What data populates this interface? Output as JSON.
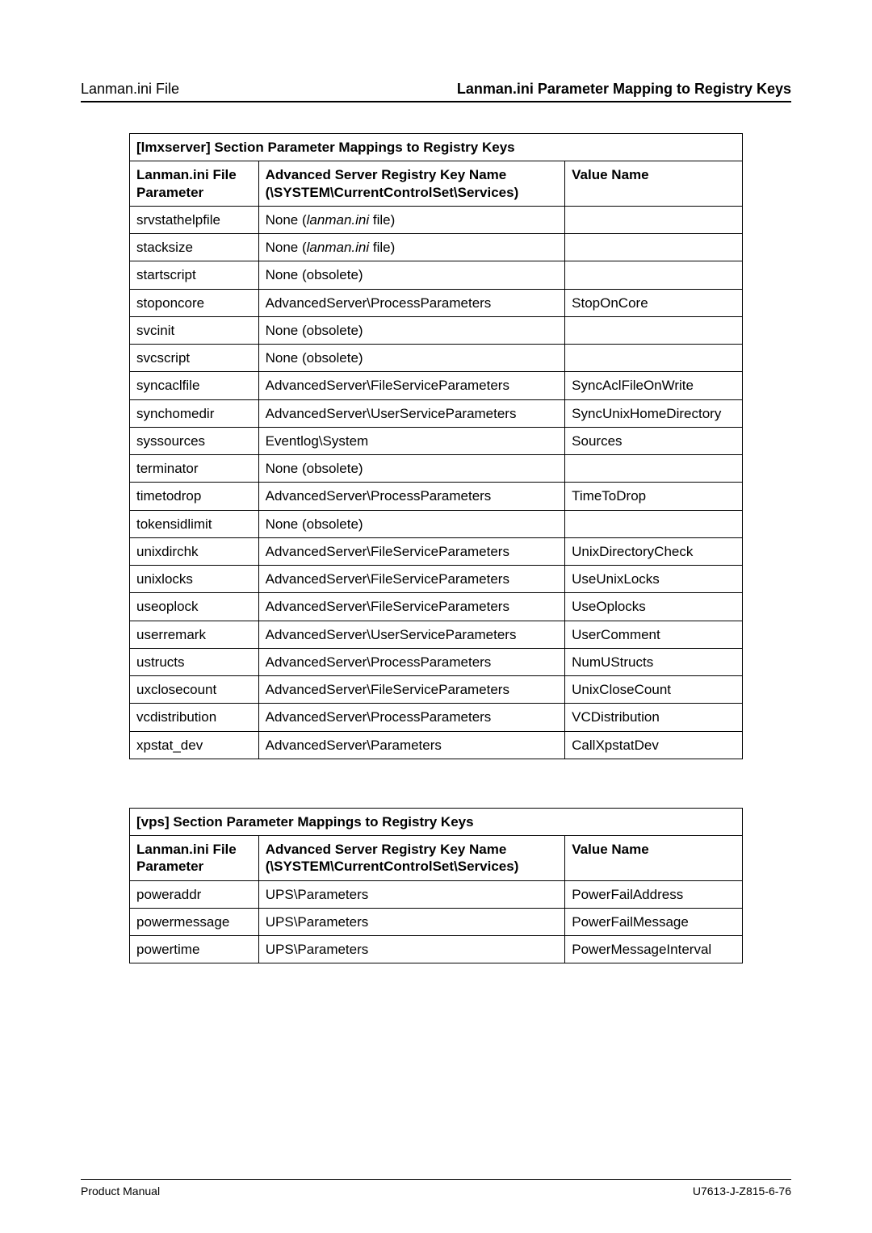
{
  "page": {
    "header_left": "Lanman.ini File",
    "header_right": "Lanman.ini Parameter Mapping to Registry Keys",
    "footer_left": "Product Manual",
    "footer_right": "U7613-J-Z815-6-76"
  },
  "table1": {
    "caption": "[lmxserver] Section Parameter Mappings to Registry Keys",
    "columns": {
      "param": "Lanman.ini File Parameter",
      "key": "Advanced Server Registry Key Name (\\SYSTEM\\CurrentControlSet\\Services)",
      "value": "Value Name"
    },
    "rows": [
      {
        "param": "srvstathelpfile",
        "key_pre": "None (",
        "key_italic": "lanman.ini",
        "key_post": " file)",
        "value": ""
      },
      {
        "param": "stacksize",
        "key_pre": "None (",
        "key_italic": "lanman.ini",
        "key_post": " file)",
        "value": ""
      },
      {
        "param": "startscript",
        "key": "None (obsolete)",
        "value": ""
      },
      {
        "param": "stoponcore",
        "key": "AdvancedServer\\ProcessParameters",
        "value": "StopOnCore"
      },
      {
        "param": "svcinit",
        "key": "None (obsolete)",
        "value": ""
      },
      {
        "param": "svcscript",
        "key": "None (obsolete)",
        "value": ""
      },
      {
        "param": "syncaclfile",
        "key": "AdvancedServer\\FileServiceParameters",
        "value": "SyncAclFileOnWrite"
      },
      {
        "param": "synchomedir",
        "key": "AdvancedServer\\UserServiceParameters",
        "value": "SyncUnixHomeDirectory"
      },
      {
        "param": "syssources",
        "key": "Eventlog\\System",
        "value": "Sources"
      },
      {
        "param": "terminator",
        "key": "None (obsolete)",
        "value": ""
      },
      {
        "param": "timetodrop",
        "key": "AdvancedServer\\ProcessParameters",
        "value": "TimeToDrop"
      },
      {
        "param": "tokensidlimit",
        "key": "None (obsolete)",
        "value": ""
      },
      {
        "param": "unixdirchk",
        "key": "AdvancedServer\\FileServiceParameters",
        "value": "UnixDirectoryCheck"
      },
      {
        "param": "unixlocks",
        "key": "AdvancedServer\\FileServiceParameters",
        "value": "UseUnixLocks"
      },
      {
        "param": "useoplock",
        "key": "AdvancedServer\\FileServiceParameters",
        "value": "UseOplocks"
      },
      {
        "param": "userremark",
        "key": "AdvancedServer\\UserServiceParameters",
        "value": "UserComment"
      },
      {
        "param": "ustructs",
        "key": "AdvancedServer\\ProcessParameters",
        "value": "NumUStructs"
      },
      {
        "param": "uxclosecount",
        "key": "AdvancedServer\\FileServiceParameters",
        "value": "UnixCloseCount"
      },
      {
        "param": "vcdistribution",
        "key": "AdvancedServer\\ProcessParameters",
        "value": "VCDistribution"
      },
      {
        "param": "xpstat_dev",
        "key": "AdvancedServer\\Parameters",
        "value": "CallXpstatDev"
      }
    ]
  },
  "table2": {
    "caption": "[vps] Section Parameter Mappings to Registry Keys",
    "columns": {
      "param": "Lanman.ini File Parameter",
      "key": "Advanced Server Registry Key Name (\\SYSTEM\\CurrentControlSet\\Services)",
      "value": "Value Name"
    },
    "rows": [
      {
        "param": "poweraddr",
        "key": "UPS\\Parameters",
        "value": "PowerFailAddress"
      },
      {
        "param": "powermessage",
        "key": "UPS\\Parameters",
        "value": "PowerFailMessage"
      },
      {
        "param": "powertime",
        "key": "UPS\\Parameters",
        "value": "PowerMessageInterval"
      }
    ]
  }
}
